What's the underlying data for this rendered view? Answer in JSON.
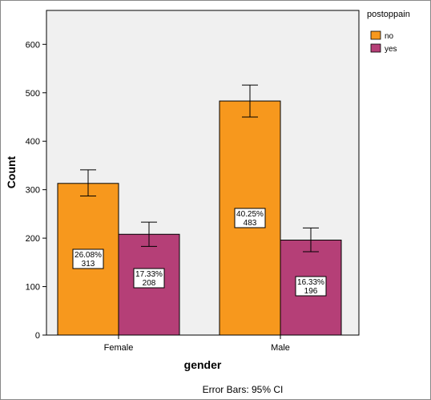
{
  "chart_data": {
    "type": "bar",
    "categories": [
      "Female",
      "Male"
    ],
    "series": [
      {
        "name": "no",
        "color": "#f7981d",
        "values": [
          313,
          483
        ],
        "percent_labels": [
          "26.08%",
          "40.25%"
        ],
        "ci": [
          [
            287,
            341
          ],
          [
            450,
            516
          ]
        ]
      },
      {
        "name": "yes",
        "color": "#b53f77",
        "values": [
          208,
          196
        ],
        "percent_labels": [
          "17.33%",
          "16.33%"
        ],
        "ci": [
          [
            183,
            233
          ],
          [
            172,
            221
          ]
        ]
      }
    ],
    "xlabel": "gender",
    "ylabel": "Count",
    "ylim": [
      0,
      650
    ],
    "yticks": [
      0,
      100,
      200,
      300,
      400,
      500,
      600
    ],
    "legend": {
      "title": "postoppain",
      "placement": "top-right"
    },
    "footnote": "Error Bars: 95% CI",
    "grid": false
  }
}
